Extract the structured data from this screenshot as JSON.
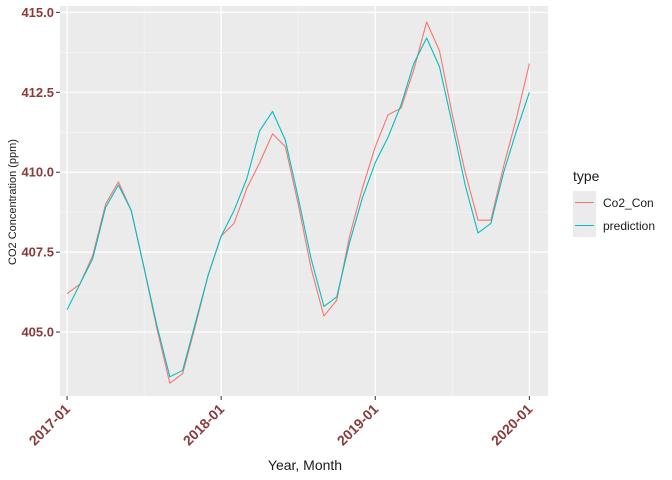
{
  "chart_data": {
    "type": "line",
    "title": "",
    "xlabel": "Year, Month",
    "ylabel": "CO2 Concentration (ppm)",
    "x_ticks": [
      "2017-01",
      "2018-01",
      "2019-01",
      "2020-01"
    ],
    "y_ticks": [
      "405.0",
      "407.5",
      "410.0",
      "412.5",
      "415.0"
    ],
    "ylim": [
      403.0,
      415.2
    ],
    "xlim": [
      "2016-12",
      "2020-02"
    ],
    "grid": true,
    "legend": {
      "title": "type",
      "placement": "right"
    },
    "x": [
      "2017-01",
      "2017-02",
      "2017-03",
      "2017-04",
      "2017-05",
      "2017-06",
      "2017-07",
      "2017-08",
      "2017-09",
      "2017-10",
      "2017-11",
      "2017-12",
      "2018-01",
      "2018-02",
      "2018-03",
      "2018-04",
      "2018-05",
      "2018-06",
      "2018-07",
      "2018-08",
      "2018-09",
      "2018-10",
      "2018-11",
      "2018-12",
      "2019-01",
      "2019-02",
      "2019-03",
      "2019-04",
      "2019-05",
      "2019-06",
      "2019-07",
      "2019-08",
      "2019-09",
      "2019-10",
      "2019-11",
      "2019-12",
      "2020-01"
    ],
    "series": [
      {
        "name": "Co2_Con",
        "color": "#f8766d",
        "values": [
          406.2,
          406.5,
          407.4,
          409.0,
          409.7,
          408.8,
          407.0,
          405.1,
          403.4,
          403.7,
          405.2,
          406.8,
          408.0,
          408.4,
          409.5,
          410.3,
          411.2,
          410.8,
          409.0,
          407.0,
          405.5,
          406.0,
          408.0,
          409.5,
          410.8,
          411.8,
          412.0,
          413.2,
          414.7,
          413.8,
          411.8,
          410.0,
          408.5,
          408.5,
          410.2,
          411.7,
          413.4
        ]
      },
      {
        "name": "prediction",
        "color": "#00bfc4",
        "values": [
          405.7,
          406.5,
          407.3,
          408.9,
          409.6,
          408.8,
          407.0,
          405.2,
          403.6,
          403.8,
          405.3,
          406.8,
          408.0,
          408.8,
          409.8,
          411.3,
          411.9,
          411.0,
          409.2,
          407.3,
          405.8,
          406.1,
          407.8,
          409.2,
          410.3,
          411.1,
          412.1,
          413.4,
          414.2,
          413.3,
          411.5,
          409.6,
          408.1,
          408.4,
          410.0,
          411.3,
          412.5
        ]
      }
    ]
  }
}
